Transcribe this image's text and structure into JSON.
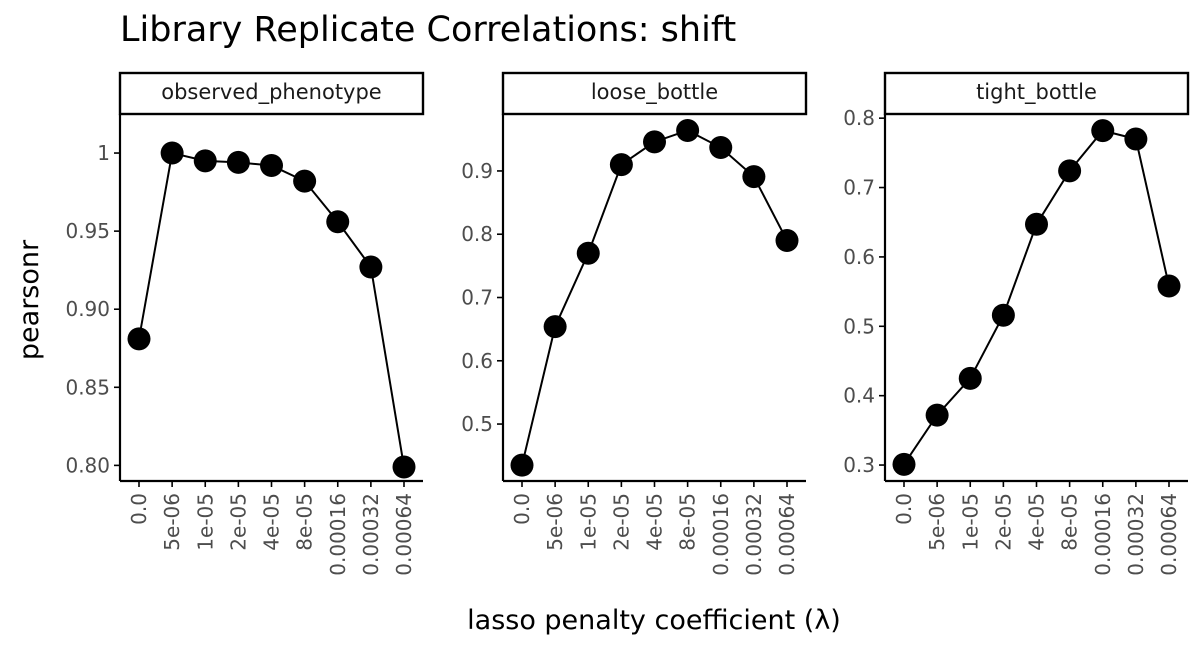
{
  "chart_data": {
    "type": "line",
    "title": "Library Replicate Correlations: shift",
    "xlabel": "lasso penalty coefficient (λ)",
    "ylabel": "pearsonr",
    "categories": [
      "0.0",
      "5e-06",
      "1e-05",
      "2e-05",
      "4e-05",
      "8e-05",
      "0.00016",
      "0.00032",
      "0.00064"
    ],
    "panels": [
      {
        "name": "observed_phenotype",
        "values": [
          0.881,
          1.0,
          0.995,
          0.994,
          0.992,
          0.982,
          0.956,
          0.927,
          0.799
        ],
        "ylim": [
          0.79,
          1.025
        ],
        "yticks": [
          0.8,
          0.85,
          0.9,
          0.95,
          1.0
        ],
        "ytick_labels": [
          "0.80",
          "0.85",
          "0.90",
          "0.95",
          "1"
        ]
      },
      {
        "name": "loose_bottle",
        "values": [
          0.435,
          0.654,
          0.77,
          0.91,
          0.946,
          0.964,
          0.937,
          0.891,
          0.79
        ],
        "ylim": [
          0.41,
          0.99
        ],
        "yticks": [
          0.5,
          0.6,
          0.7,
          0.8,
          0.9
        ],
        "ytick_labels": [
          "0.5",
          "0.6",
          "0.7",
          "0.8",
          "0.9"
        ]
      },
      {
        "name": "tight_bottle",
        "values": [
          0.301,
          0.372,
          0.425,
          0.516,
          0.647,
          0.724,
          0.782,
          0.77,
          0.558
        ],
        "ylim": [
          0.277,
          0.806
        ],
        "yticks": [
          0.3,
          0.4,
          0.5,
          0.6,
          0.7,
          0.8
        ],
        "ytick_labels": [
          "0.3",
          "0.4",
          "0.5",
          "0.6",
          "0.7",
          "0.8"
        ]
      }
    ],
    "grid": false,
    "legend": "none"
  }
}
